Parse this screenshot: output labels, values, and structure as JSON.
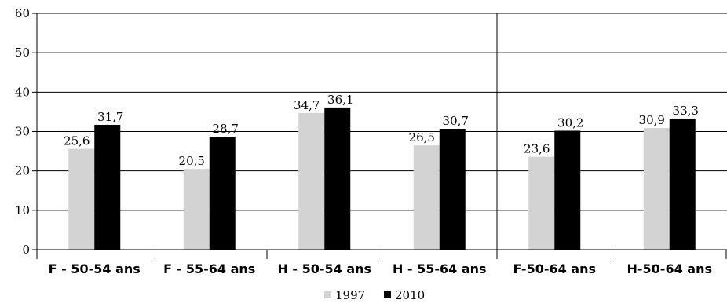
{
  "chart_data": {
    "type": "bar",
    "title": "",
    "xlabel": "",
    "ylabel": "",
    "ylim": [
      0,
      60
    ],
    "yticks": [
      "0",
      "10",
      "20",
      "30",
      "40",
      "50",
      "60"
    ],
    "grid": true,
    "legend_position": "bottom",
    "categories": [
      "F - 50-54 ans",
      "F - 55-64 ans",
      "H - 50-54 ans",
      "H - 55-64 ans",
      "F-50-64 ans",
      "H-50-64 ans"
    ],
    "series": [
      {
        "name": "1997",
        "color": "#d3d3d3",
        "values": [
          25.6,
          20.5,
          34.7,
          26.5,
          23.6,
          30.9
        ],
        "labels": [
          "25,6",
          "20,5",
          "34,7",
          "26,5",
          "23,6",
          "30,9"
        ]
      },
      {
        "name": "2010",
        "color": "#000000",
        "values": [
          31.7,
          28.7,
          36.1,
          30.7,
          30.2,
          33.3
        ],
        "labels": [
          "31,7",
          "28,7",
          "36,1",
          "30,7",
          "30,2",
          "33,3"
        ]
      }
    ]
  }
}
